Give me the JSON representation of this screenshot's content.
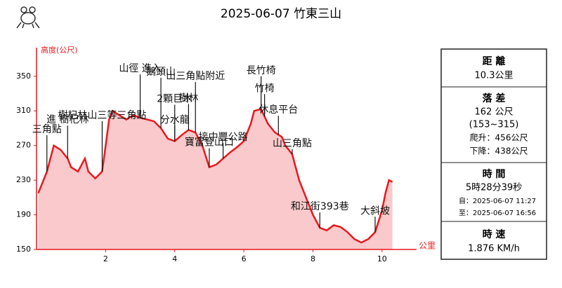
{
  "chart_data": {
    "type": "area",
    "title": "2025-06-07 竹東三山",
    "ylabel": "高度(公尺)",
    "xlabel": "公里",
    "color": "#e8191e",
    "fill": "#f9c9cb",
    "xlim": [
      0,
      11
    ],
    "ylim": [
      150,
      383
    ],
    "xticks": [
      2,
      4,
      6,
      8,
      10
    ],
    "yticks": [
      150,
      190,
      230,
      270,
      310,
      350
    ],
    "x": [
      0.05,
      0.3,
      0.5,
      0.7,
      0.9,
      1.0,
      1.2,
      1.4,
      1.5,
      1.7,
      1.9,
      2.0,
      2.1,
      2.2,
      2.4,
      2.6,
      2.8,
      3.0,
      3.2,
      3.4,
      3.6,
      3.8,
      4.0,
      4.2,
      4.4,
      4.6,
      4.8,
      5.0,
      5.2,
      5.4,
      5.6,
      5.8,
      6.0,
      6.2,
      6.3,
      6.5,
      6.7,
      6.9,
      7.1,
      7.2,
      7.4,
      7.6,
      7.8,
      8.0,
      8.2,
      8.4,
      8.6,
      8.8,
      9.0,
      9.2,
      9.4,
      9.6,
      9.8,
      10.0,
      10.1,
      10.2,
      10.3
    ],
    "values": [
      215,
      240,
      270,
      265,
      255,
      245,
      240,
      255,
      240,
      232,
      240,
      270,
      300,
      310,
      305,
      300,
      305,
      302,
      300,
      298,
      290,
      278,
      275,
      282,
      288,
      285,
      270,
      245,
      248,
      255,
      262,
      268,
      275,
      295,
      310,
      312,
      295,
      285,
      280,
      270,
      260,
      230,
      210,
      190,
      175,
      172,
      178,
      176,
      170,
      162,
      158,
      162,
      170,
      195,
      215,
      230,
      228
    ],
    "annotations": [
      {
        "text": "三角點",
        "x": 0.3
      },
      {
        "text": "進 樹杞林",
        "x": 0.9
      },
      {
        "text": "樹杞林山三等三角點",
        "x": 1.9
      },
      {
        "text": "山徑 進入",
        "x": 3.0
      },
      {
        "text": "鵝頭山",
        "x": 3.6
      },
      {
        "text": "2顆巨木",
        "x": 4.0
      },
      {
        "text": "山三角點附近",
        "x": 4.6
      },
      {
        "text": "樹林",
        "x": 4.4
      },
      {
        "text": "分水龍",
        "x": 4.0
      },
      {
        "text": "寶富登山口",
        "x": 5.0
      },
      {
        "text": "接中豐公路",
        "x": 5.4
      },
      {
        "text": "長竹椅",
        "x": 6.5
      },
      {
        "text": "竹椅",
        "x": 6.6
      },
      {
        "text": "休息平台",
        "x": 7.0
      },
      {
        "text": "山三角點",
        "x": 7.4
      },
      {
        "text": "和江街393巷",
        "x": 8.2
      },
      {
        "text": "大斜坡",
        "x": 9.8
      }
    ]
  },
  "panel": {
    "distance": {
      "label": "距 離",
      "value": "10.3公里"
    },
    "drop": {
      "label": "落 差",
      "value": "162 公尺",
      "range": "(153~315)",
      "up": "爬升：456公尺",
      "down": "下降：438公尺"
    },
    "time": {
      "label": "時 間",
      "value": "5時28分39秒",
      "from": "自：2025-06-07 11:27",
      "to": "至：2025-06-07 16:56"
    },
    "speed": {
      "label": "時 速",
      "value": "1.876 KM/h"
    }
  }
}
